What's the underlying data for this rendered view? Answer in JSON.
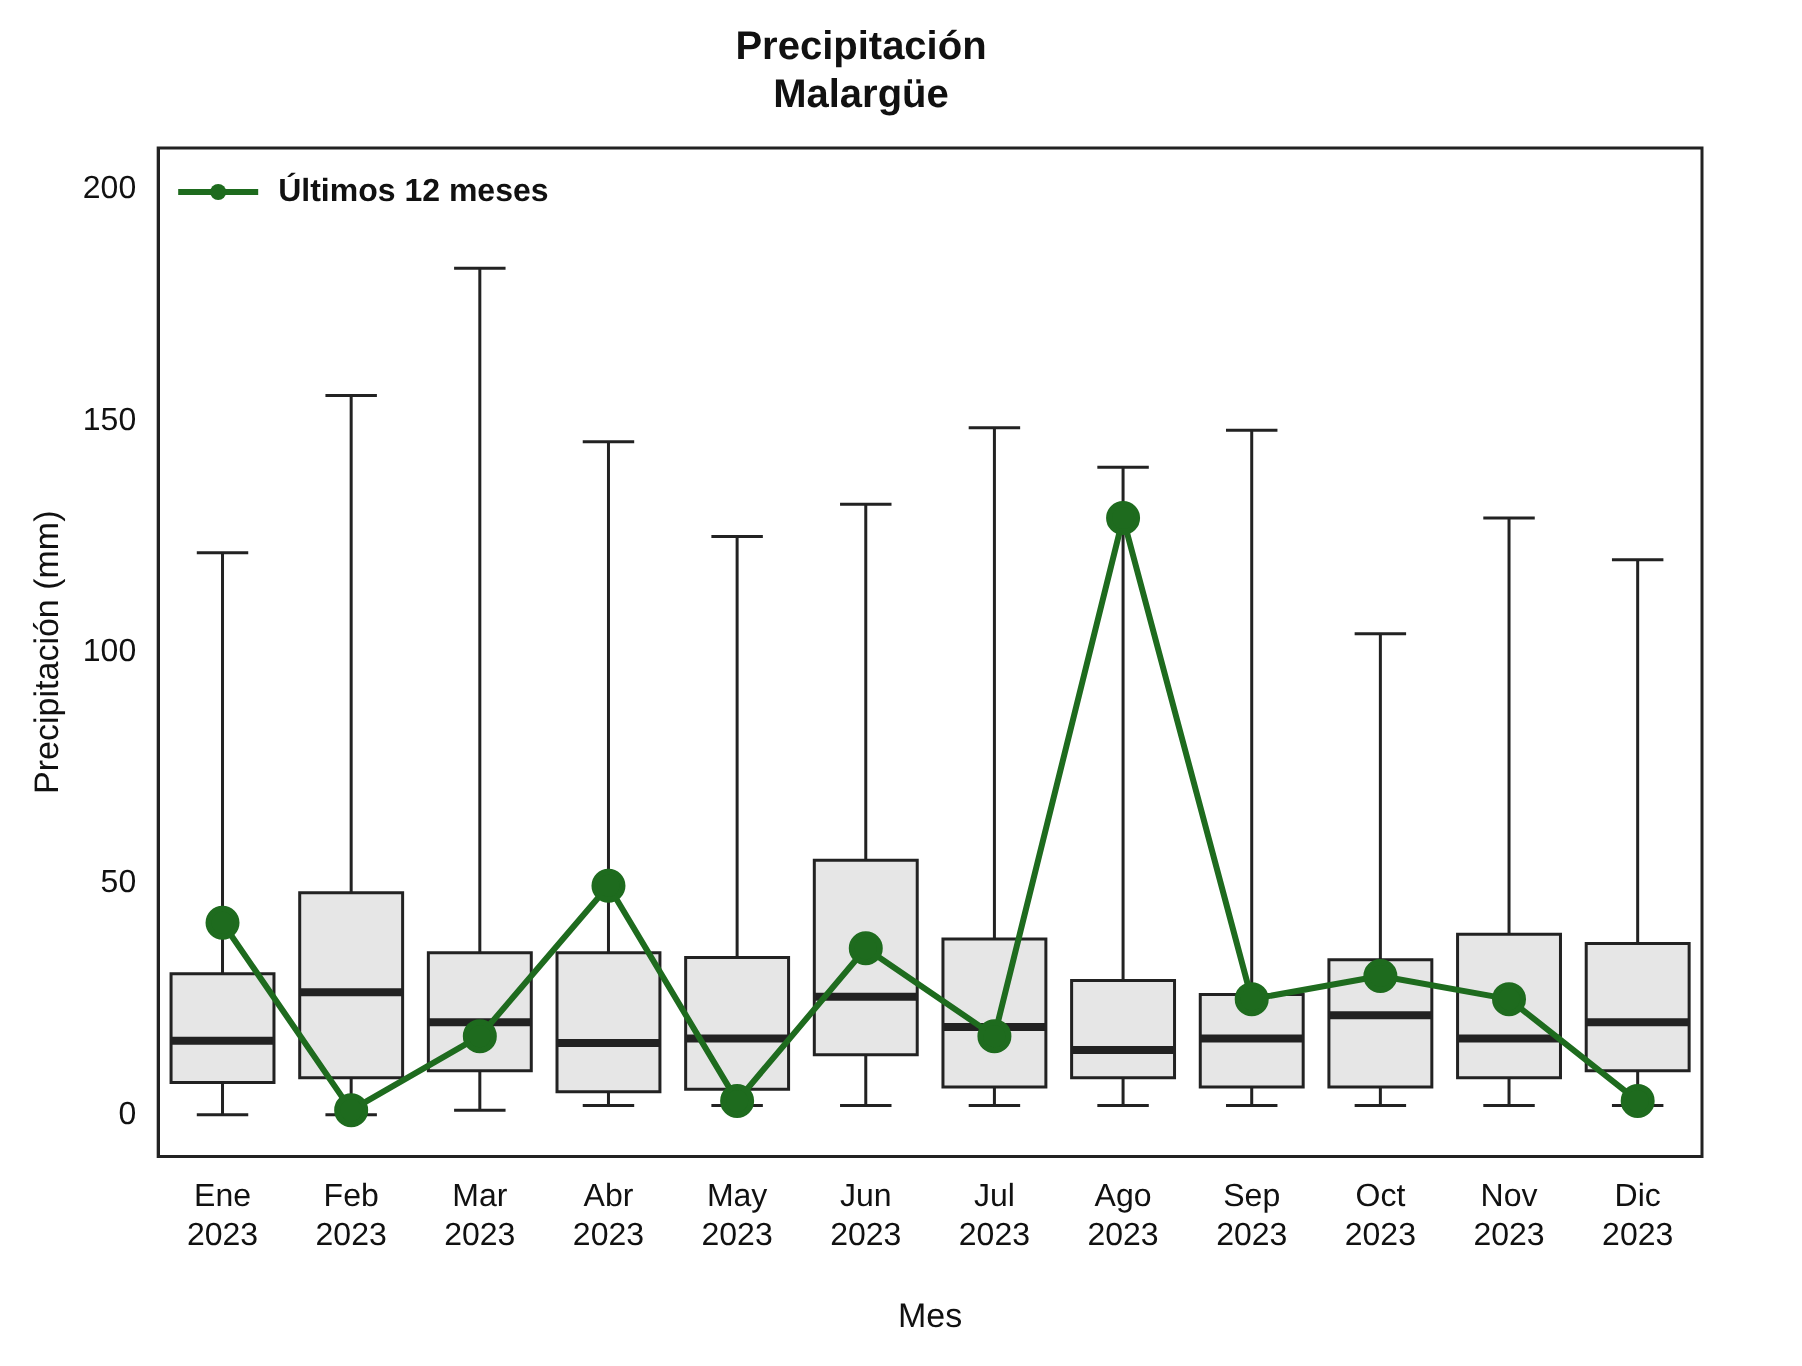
{
  "chart_data": {
    "type": "box",
    "title": "Precipitación\nMalargüe",
    "xlabel": "Mes",
    "ylabel": "Precipitación (mm)",
    "categories": [
      "Ene 2023",
      "Feb 2023",
      "Mar 2023",
      "Abr 2023",
      "May 2023",
      "Jun 2023",
      "Jul 2023",
      "Ago 2023",
      "Sep 2023",
      "Oct 2023",
      "Nov 2023",
      "Dic 2023"
    ],
    "color": "#e6e6e6",
    "boxes": [
      {
        "low": 0,
        "q1": 7,
        "median": 16,
        "q3": 30.5,
        "high": 121.5
      },
      {
        "low": 0,
        "q1": 8,
        "median": 26.5,
        "q3": 48,
        "high": 155.5
      },
      {
        "low": 1,
        "q1": 9.5,
        "median": 20,
        "q3": 35,
        "high": 183
      },
      {
        "low": 2,
        "q1": 5,
        "median": 15.5,
        "q3": 35,
        "high": 145.5
      },
      {
        "low": 2,
        "q1": 5.5,
        "median": 16.5,
        "q3": 34,
        "high": 125
      },
      {
        "low": 2,
        "q1": 13,
        "median": 25.5,
        "q3": 55,
        "high": 132
      },
      {
        "low": 2,
        "q1": 6,
        "median": 19,
        "q3": 38,
        "high": 148.5
      },
      {
        "low": 2,
        "q1": 8,
        "median": 14,
        "q3": 29,
        "high": 140
      },
      {
        "low": 2,
        "q1": 6,
        "median": 16.5,
        "q3": 26,
        "high": 148
      },
      {
        "low": 2,
        "q1": 6,
        "median": 21.5,
        "q3": 33.5,
        "high": 104
      },
      {
        "low": 2,
        "q1": 8,
        "median": 16.5,
        "q3": 39,
        "high": 129
      },
      {
        "low": 2,
        "q1": 9.5,
        "median": 20,
        "q3": 37,
        "high": 120
      }
    ],
    "series": [
      {
        "type": "line",
        "name": "Últimos 12 meses",
        "color": "#1e6b1e",
        "marker": "circle",
        "values": [
          41.5,
          1,
          17,
          49.5,
          3,
          36,
          17,
          129,
          25,
          30,
          25,
          3
        ]
      }
    ],
    "ylim": [
      -9,
      209
    ],
    "yticks": [
      0,
      50,
      100,
      150,
      200
    ],
    "grid": false,
    "legend": "top left"
  }
}
